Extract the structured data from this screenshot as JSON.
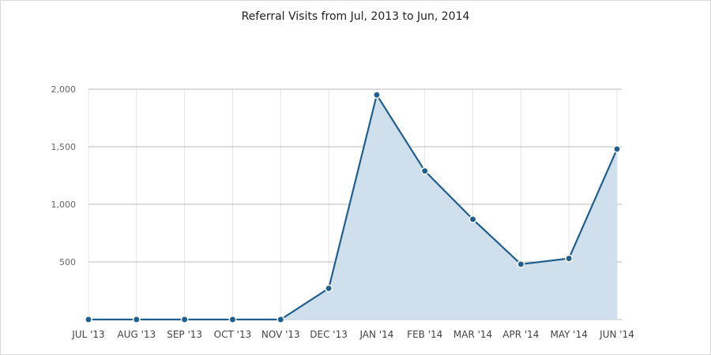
{
  "chart_data": {
    "type": "area",
    "title": "Referral Visits from Jul, 2013 to Jun, 2014",
    "xlabel": "",
    "ylabel": "",
    "categories": [
      "JUL '13",
      "AUG '13",
      "SEP '13",
      "OCT '13",
      "NOV '13",
      "DEC '13",
      "JAN '14",
      "FEB '14",
      "MAR '14",
      "APR '14",
      "MAY '14",
      "JUN '14"
    ],
    "series": [
      {
        "values": [
          0,
          0,
          0,
          0,
          0,
          270,
          1950,
          1290,
          870,
          480,
          530,
          1480
        ]
      }
    ],
    "ylim": [
      0,
      2000
    ],
    "yticks": [
      500,
      1000,
      1500,
      2000
    ],
    "ytick_labels": [
      "500",
      "1,000",
      "1,500",
      "2,000"
    ],
    "grid": true,
    "legend": "none",
    "colors": {
      "line": "#1f5f8f",
      "fill": "#cfe0ec",
      "marker": "#1f5f8f",
      "marker_stroke": "#ffffff",
      "grid_major": "#bbbbbb",
      "grid_minor": "#e6e6e6"
    }
  }
}
